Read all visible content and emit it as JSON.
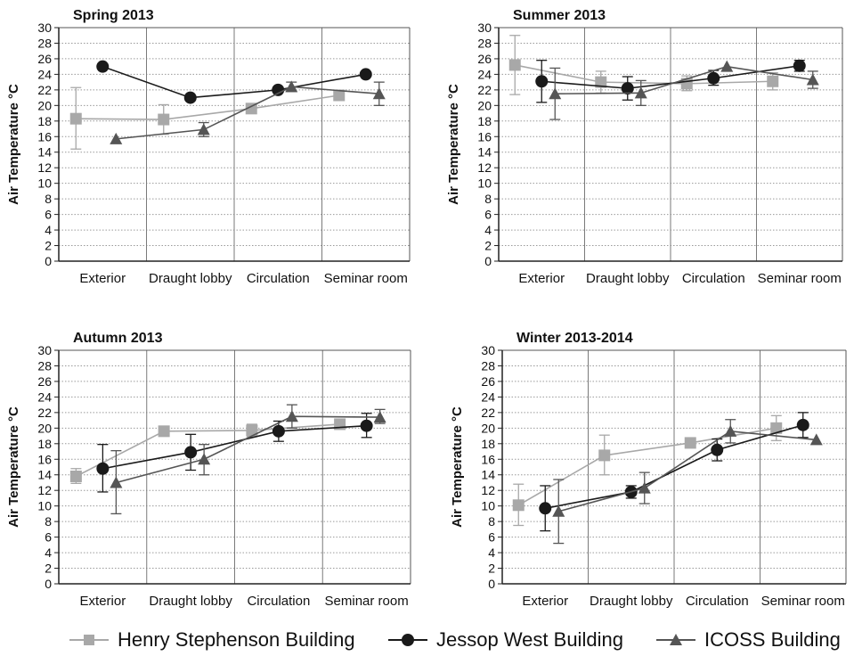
{
  "chart_data": [
    {
      "type": "line",
      "title": "Spring 2013",
      "ylabel": "Air Temperature °C",
      "ylim": [
        0,
        30
      ],
      "ytick_step": 2,
      "categories": [
        "Exterior",
        "Draught lobby",
        "Circulation",
        "Seminar room"
      ],
      "grid": true,
      "series": [
        {
          "name": "Henry Stephenson Building",
          "values": [
            18.3,
            18.2,
            19.6,
            21.3
          ],
          "err_low": [
            14.4,
            16.3,
            null,
            null
          ],
          "err_high": [
            22.3,
            20.1,
            null,
            null
          ]
        },
        {
          "name": "Jessop West Building",
          "values": [
            25.0,
            21.0,
            22.0,
            24.0
          ],
          "err_low": [
            null,
            null,
            null,
            null
          ],
          "err_high": [
            null,
            null,
            null,
            null
          ]
        },
        {
          "name": "ICOSS Building",
          "values": [
            15.7,
            16.9,
            22.4,
            21.5
          ],
          "err_low": [
            null,
            16.0,
            21.8,
            20.0
          ],
          "err_high": [
            null,
            17.8,
            23.0,
            23.0
          ]
        }
      ]
    },
    {
      "type": "line",
      "title": "Summer 2013",
      "ylabel": "Air Temperature °C",
      "ylim": [
        0,
        30
      ],
      "ytick_step": 2,
      "categories": [
        "Exterior",
        "Draught lobby",
        "Circulation",
        "Seminar room"
      ],
      "grid": true,
      "series": [
        {
          "name": "Henry Stephenson Building",
          "values": [
            25.2,
            23.0,
            22.8,
            23.1
          ],
          "err_low": [
            21.4,
            21.6,
            21.9,
            22.0
          ],
          "err_high": [
            29.0,
            24.4,
            23.8,
            24.2
          ]
        },
        {
          "name": "Jessop West Building",
          "values": [
            23.1,
            22.2,
            23.5,
            25.1
          ],
          "err_low": [
            20.4,
            20.7,
            22.6,
            24.4
          ],
          "err_high": [
            25.8,
            23.7,
            24.5,
            25.8
          ]
        },
        {
          "name": "ICOSS Building",
          "values": [
            21.5,
            21.6,
            25.0,
            23.3
          ],
          "err_low": [
            18.2,
            20.0,
            null,
            22.2
          ],
          "err_high": [
            24.8,
            23.2,
            null,
            24.4
          ]
        }
      ]
    },
    {
      "type": "line",
      "title": "Autumn 2013",
      "ylabel": "Air Temperature °C",
      "ylim": [
        0,
        30
      ],
      "ytick_step": 2,
      "categories": [
        "Exterior",
        "Draught lobby",
        "Circulation",
        "Seminar room"
      ],
      "grid": true,
      "series": [
        {
          "name": "Henry Stephenson Building",
          "values": [
            13.8,
            19.6,
            19.7,
            20.5
          ],
          "err_low": [
            12.9,
            null,
            18.9,
            null
          ],
          "err_high": [
            14.8,
            null,
            20.5,
            null
          ]
        },
        {
          "name": "Jessop West Building",
          "values": [
            14.8,
            16.9,
            19.6,
            20.3
          ],
          "err_low": [
            11.8,
            14.6,
            18.3,
            18.8
          ],
          "err_high": [
            17.9,
            19.2,
            20.9,
            21.9
          ]
        },
        {
          "name": "ICOSS Building",
          "values": [
            13.0,
            16.0,
            21.5,
            21.4
          ],
          "err_low": [
            9.0,
            14.0,
            20.0,
            20.6
          ],
          "err_high": [
            17.1,
            17.9,
            23.0,
            22.4
          ]
        }
      ]
    },
    {
      "type": "line",
      "title": "Winter 2013-2014",
      "ylabel": "Air Temperature °C",
      "ylim": [
        0,
        30
      ],
      "ytick_step": 2,
      "categories": [
        "Exterior",
        "Draught lobby",
        "Circulation",
        "Seminar room"
      ],
      "grid": true,
      "series": [
        {
          "name": "Henry Stephenson Building",
          "values": [
            10.1,
            16.5,
            18.1,
            20.0
          ],
          "err_low": [
            7.5,
            14.0,
            null,
            18.4
          ],
          "err_high": [
            12.8,
            19.1,
            null,
            21.6
          ]
        },
        {
          "name": "Jessop West Building",
          "values": [
            9.7,
            11.8,
            17.2,
            20.4
          ],
          "err_low": [
            6.8,
            11.0,
            15.8,
            18.8
          ],
          "err_high": [
            12.6,
            12.6,
            18.6,
            22.0
          ]
        },
        {
          "name": "ICOSS Building",
          "values": [
            9.3,
            12.3,
            19.6,
            18.5
          ],
          "err_low": [
            5.2,
            10.3,
            18.1,
            null
          ],
          "err_high": [
            13.4,
            14.3,
            21.1,
            null
          ]
        }
      ]
    }
  ],
  "legend": {
    "items": [
      {
        "label": "Henry Stephenson Building",
        "marker": "square",
        "color": "#a8a8a8"
      },
      {
        "label": "Jessop West Building",
        "marker": "circle",
        "color": "#1a1a1a"
      },
      {
        "label": "ICOSS Building",
        "marker": "triangle",
        "color": "#555555"
      }
    ]
  },
  "series_styles": [
    {
      "color": "#a8a8a8",
      "marker": "square"
    },
    {
      "color": "#1a1a1a",
      "marker": "circle"
    },
    {
      "color": "#555555",
      "marker": "triangle"
    }
  ]
}
